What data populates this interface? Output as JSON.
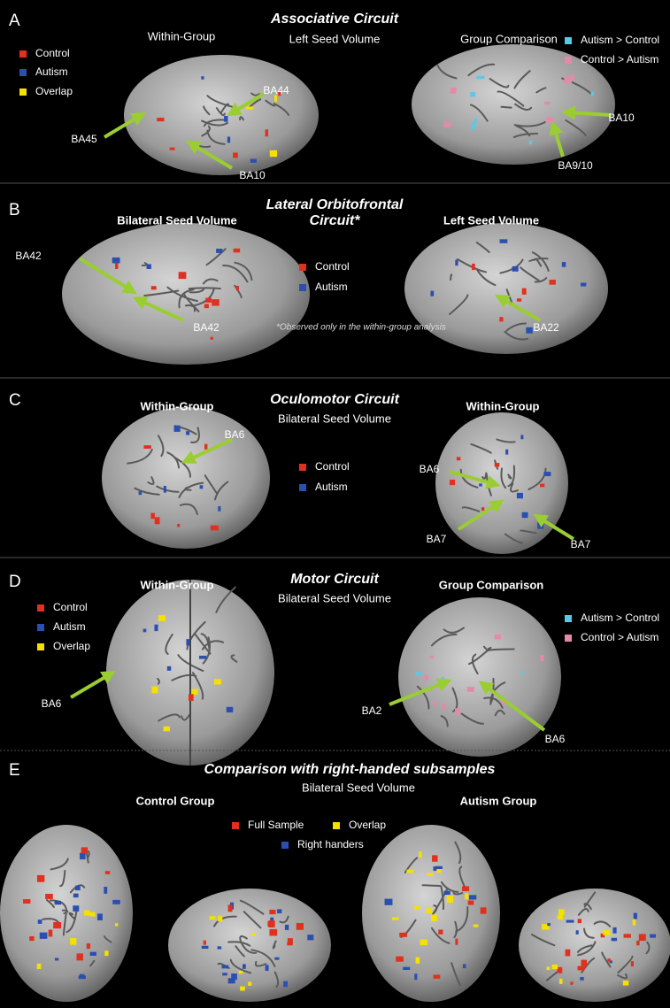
{
  "panels": [
    {
      "letter": "A",
      "title": "Associative Circuit",
      "subtitle": "Left Seed Volume",
      "headings": [
        "Within-Group",
        "Group Comparison"
      ],
      "legends": [
        [
          {
            "label": "Control",
            "color": "#e0301e"
          },
          {
            "label": "Autism",
            "color": "#2a4fb0"
          },
          {
            "label": "Overlap",
            "color": "#f5e000"
          }
        ],
        [
          {
            "label": "Autism > Control",
            "color": "#5bc8e8"
          },
          {
            "label": "Control > Autism",
            "color": "#e48aa8"
          }
        ]
      ],
      "labels": [
        "BA45",
        "BA44",
        "BA10",
        "BA10",
        "BA9/10"
      ]
    },
    {
      "letter": "B",
      "title_lines": [
        "Lateral Orbitofrontal",
        "Circuit*"
      ],
      "headings": [
        "Bilateral Seed Volume",
        "Left Seed Volume"
      ],
      "legends": [
        [
          {
            "label": "Control",
            "color": "#e0301e"
          },
          {
            "label": "Autism",
            "color": "#2a4fb0"
          }
        ]
      ],
      "labels": [
        "BA42",
        "BA42",
        "BA22"
      ],
      "note": "*Observed only in the within-group analysis"
    },
    {
      "letter": "C",
      "title": "Oculomotor Circuit",
      "subtitle": "Bilateral Seed Volume",
      "headings": [
        "Within-Group",
        "Within-Group"
      ],
      "legends": [
        [
          {
            "label": "Control",
            "color": "#e0301e"
          },
          {
            "label": "Autism",
            "color": "#2a4fb0"
          }
        ]
      ],
      "labels": [
        "BA6",
        "BA6",
        "BA7",
        "BA7"
      ]
    },
    {
      "letter": "D",
      "title": "Motor Circuit",
      "subtitle": "Bilateral Seed Volume",
      "headings": [
        "Within-Group",
        "Group Comparison"
      ],
      "legends": [
        [
          {
            "label": "Control",
            "color": "#e0301e"
          },
          {
            "label": "Autism",
            "color": "#2a4fb0"
          },
          {
            "label": "Overlap",
            "color": "#f5e000"
          }
        ],
        [
          {
            "label": "Autism > Control",
            "color": "#5bc8e8"
          },
          {
            "label": "Control > Autism",
            "color": "#e48aa8"
          }
        ]
      ],
      "labels": [
        "BA6",
        "BA2",
        "BA6"
      ]
    },
    {
      "letter": "E",
      "title": "Comparison with right-handed subsamples",
      "subtitle": "Bilateral Seed Volume",
      "headings": [
        "Control Group",
        "Autism Group"
      ],
      "legends": [
        [
          {
            "label": "Full Sample",
            "color": "#e0301e"
          },
          {
            "label": "Overlap",
            "color": "#f5e000"
          },
          {
            "label": "Right handers",
            "color": "#2a4fb0"
          }
        ]
      ]
    }
  ]
}
